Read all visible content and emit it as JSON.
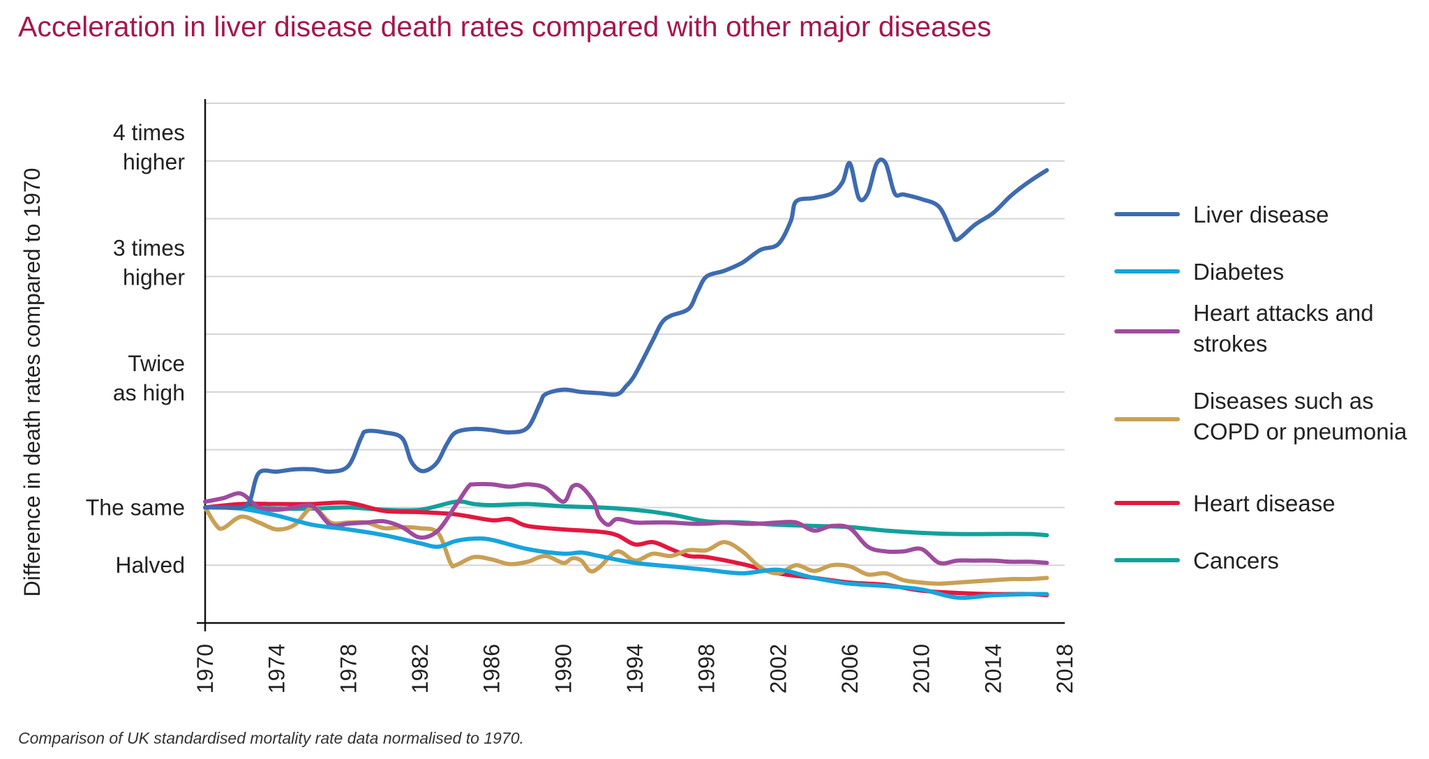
{
  "chart_data": {
    "type": "line",
    "title": "Acceleration in liver disease death rates compared with other major diseases",
    "ylabel": "Difference in death rates compared to 1970",
    "caption": "Comparison of UK standardised mortality rate data normalised to 1970.",
    "xlim": [
      1970,
      2018
    ],
    "ylim": [
      0.0,
      4.5
    ],
    "y_scale": "ratio to 1970 (equal spacing per half step)",
    "grid": "horizontal",
    "legend_position": "right",
    "x_ticks": [
      "1970",
      "1974",
      "1978",
      "1982",
      "1986",
      "1990",
      "1994",
      "1998",
      "2002",
      "2006",
      "2010",
      "2014",
      "2018"
    ],
    "y_ticks": [
      {
        "value": 4.0,
        "lines": [
          "4 times",
          "higher"
        ]
      },
      {
        "value": 3.0,
        "lines": [
          "3 times",
          "higher"
        ]
      },
      {
        "value": 2.0,
        "lines": [
          "Twice",
          "as high"
        ]
      },
      {
        "value": 1.0,
        "lines": [
          "The same"
        ]
      },
      {
        "value": 0.5,
        "lines": [
          "Halved"
        ]
      }
    ],
    "gridlines": [
      0.5,
      1.0,
      1.5,
      2.0,
      2.5,
      3.0,
      3.5,
      4.0,
      4.5
    ],
    "series": [
      {
        "name": "Liver disease",
        "legend_lines": [
          "Liver disease"
        ],
        "color": "#3e6bb0",
        "x": [
          1970,
          1971,
          1972,
          1972.5,
          1973,
          1974,
          1975,
          1976,
          1977,
          1978,
          1978.7,
          1979,
          1980,
          1981,
          1981.5,
          1982,
          1982.5,
          1983,
          1983.5,
          1984,
          1985,
          1986,
          1987,
          1988,
          1988.7,
          1989,
          1990,
          1991,
          1992,
          1993,
          1993.5,
          1994,
          1995,
          1995.5,
          1996,
          1997,
          1997.5,
          1998,
          1999,
          2000,
          2001,
          2002,
          2002.7,
          2003,
          2004,
          2005,
          2005.6,
          2006,
          2006.5,
          2007,
          2007.5,
          2008,
          2008.5,
          2009,
          2010,
          2011,
          2011.7,
          2012,
          2013,
          2014,
          2015,
          2016,
          2017
        ],
        "y": [
          1.0,
          1.0,
          1.0,
          1.06,
          1.3,
          1.31,
          1.33,
          1.33,
          1.31,
          1.36,
          1.6,
          1.66,
          1.65,
          1.6,
          1.4,
          1.32,
          1.33,
          1.4,
          1.55,
          1.65,
          1.68,
          1.67,
          1.65,
          1.69,
          1.9,
          1.98,
          2.02,
          2.0,
          1.99,
          1.98,
          2.05,
          2.15,
          2.45,
          2.6,
          2.66,
          2.72,
          2.87,
          3.0,
          3.05,
          3.12,
          3.23,
          3.28,
          3.48,
          3.65,
          3.68,
          3.72,
          3.82,
          3.98,
          3.68,
          3.72,
          3.98,
          3.98,
          3.72,
          3.71,
          3.67,
          3.6,
          3.38,
          3.32,
          3.45,
          3.55,
          3.7,
          3.82,
          3.92
        ]
      },
      {
        "name": "Diabetes",
        "legend_lines": [
          "Diabetes"
        ],
        "color": "#17a4dd",
        "x": [
          1970,
          1972,
          1974,
          1976,
          1978,
          1980,
          1982,
          1983,
          1984,
          1985,
          1986,
          1988,
          1990,
          1991,
          1992,
          1994,
          1996,
          1998,
          2000,
          2002,
          2004,
          2006,
          2008,
          2010,
          2012,
          2014,
          2016,
          2017
        ],
        "y": [
          1.0,
          0.99,
          0.93,
          0.85,
          0.81,
          0.76,
          0.69,
          0.66,
          0.71,
          0.73,
          0.72,
          0.64,
          0.6,
          0.61,
          0.58,
          0.52,
          0.49,
          0.46,
          0.43,
          0.46,
          0.39,
          0.34,
          0.32,
          0.29,
          0.22,
          0.24,
          0.25,
          0.25
        ]
      },
      {
        "name": "Heart attacks and strokes",
        "legend_lines": [
          "Heart attacks and",
          "strokes"
        ],
        "color": "#9e4b9e",
        "x": [
          1970,
          1971,
          1972,
          1973,
          1974,
          1975,
          1976,
          1977,
          1978,
          1979,
          1980,
          1981,
          1982,
          1983,
          1984,
          1984.7,
          1985,
          1986,
          1987,
          1988,
          1989,
          1990,
          1990.5,
          1991,
          1991.7,
          1992,
          1992.5,
          1993,
          1994,
          1995,
          1996,
          1997,
          1998,
          1999,
          2000,
          2001,
          2002,
          2003,
          2004,
          2005,
          2006,
          2007,
          2008,
          2009,
          2010,
          2011,
          2012,
          2013,
          2014,
          2015,
          2016,
          2017
        ],
        "y": [
          1.05,
          1.08,
          1.12,
          1.0,
          0.98,
          1.0,
          1.01,
          0.85,
          0.86,
          0.87,
          0.88,
          0.83,
          0.74,
          0.8,
          1.02,
          1.18,
          1.2,
          1.2,
          1.18,
          1.2,
          1.17,
          1.05,
          1.18,
          1.18,
          1.05,
          0.92,
          0.85,
          0.9,
          0.87,
          0.87,
          0.87,
          0.86,
          0.86,
          0.87,
          0.86,
          0.86,
          0.87,
          0.87,
          0.8,
          0.84,
          0.82,
          0.66,
          0.62,
          0.62,
          0.64,
          0.52,
          0.54,
          0.54,
          0.54,
          0.53,
          0.53,
          0.52
        ]
      },
      {
        "name": "Diseases such as COPD or pneumonia",
        "legend_lines": [
          "Diseases such as",
          "COPD or pneumonia"
        ],
        "color": "#c9a054",
        "x": [
          1970,
          1970.6,
          1971,
          1972,
          1973,
          1974,
          1975,
          1976,
          1977,
          1978,
          1979,
          1980,
          1981,
          1982,
          1983,
          1983.7,
          1984,
          1985,
          1986,
          1987,
          1988,
          1989,
          1990,
          1990.5,
          1991,
          1991.5,
          1992,
          1993,
          1994,
          1995,
          1996,
          1997,
          1998,
          1999,
          2000,
          2001,
          2002,
          2003,
          2004,
          2005,
          2006,
          2007,
          2008,
          2009,
          2010,
          2011,
          2012,
          2013,
          2014,
          2015,
          2016,
          2017
        ],
        "y": [
          1.0,
          0.85,
          0.82,
          0.92,
          0.87,
          0.81,
          0.85,
          1.0,
          0.87,
          0.87,
          0.87,
          0.82,
          0.83,
          0.82,
          0.78,
          0.52,
          0.5,
          0.57,
          0.55,
          0.51,
          0.53,
          0.58,
          0.52,
          0.56,
          0.54,
          0.45,
          0.48,
          0.62,
          0.54,
          0.6,
          0.58,
          0.63,
          0.63,
          0.7,
          0.62,
          0.48,
          0.43,
          0.5,
          0.45,
          0.5,
          0.49,
          0.42,
          0.43,
          0.37,
          0.35,
          0.34,
          0.35,
          0.36,
          0.37,
          0.38,
          0.38,
          0.39
        ]
      },
      {
        "name": "Heart disease",
        "legend_lines": [
          "Heart disease"
        ],
        "color": "#e4173f",
        "x": [
          1970,
          1972,
          1974,
          1976,
          1978,
          1980,
          1982,
          1984,
          1986,
          1987,
          1988,
          1990,
          1992,
          1993,
          1994,
          1995,
          1996,
          1997,
          1998,
          2000,
          2002,
          2004,
          2006,
          2008,
          2010,
          2012,
          2014,
          2016,
          2017
        ],
        "y": [
          1.0,
          1.03,
          1.03,
          1.03,
          1.04,
          0.97,
          0.96,
          0.94,
          0.89,
          0.9,
          0.84,
          0.81,
          0.79,
          0.76,
          0.68,
          0.7,
          0.64,
          0.58,
          0.57,
          0.51,
          0.43,
          0.39,
          0.35,
          0.33,
          0.28,
          0.26,
          0.25,
          0.25,
          0.24
        ]
      },
      {
        "name": "Cancers",
        "legend_lines": [
          "Cancers"
        ],
        "color": "#12a19b",
        "x": [
          1970,
          1972,
          1974,
          1976,
          1978,
          1980,
          1982,
          1984,
          1985,
          1986,
          1988,
          1990,
          1992,
          1994,
          1996,
          1998,
          2000,
          2002,
          2004,
          2006,
          2008,
          2010,
          2012,
          2014,
          2016,
          2017
        ],
        "y": [
          1.0,
          1.0,
          0.99,
          0.99,
          1.0,
          0.98,
          0.98,
          1.05,
          1.03,
          1.02,
          1.03,
          1.01,
          1.0,
          0.98,
          0.94,
          0.88,
          0.87,
          0.85,
          0.84,
          0.83,
          0.8,
          0.78,
          0.77,
          0.77,
          0.77,
          0.76
        ]
      }
    ]
  }
}
